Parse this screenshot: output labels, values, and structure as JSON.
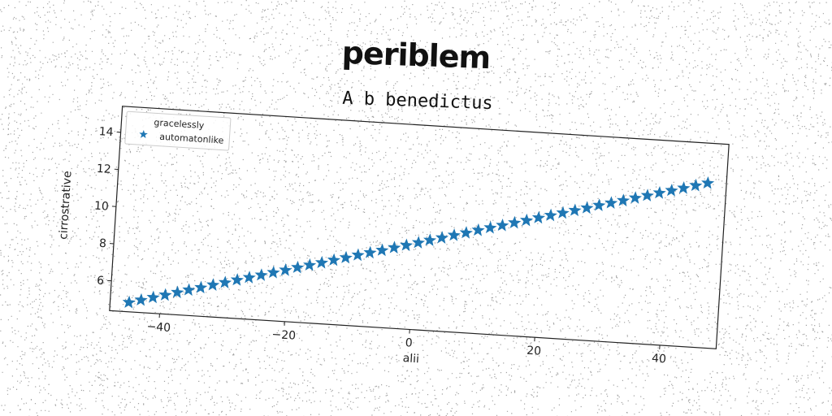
{
  "title": "periblem",
  "chart_data": {
    "type": "scatter",
    "subtitle": "A b benedictus",
    "xlabel": "alii",
    "ylabel": "cirrostrative",
    "xlim": [
      -48,
      49
    ],
    "ylim": [
      4.4,
      15.4
    ],
    "xticks": [
      -40,
      -20,
      0,
      20,
      40
    ],
    "xtick_labels": [
      "−40",
      "−20",
      "0",
      "20",
      "40"
    ],
    "yticks": [
      6,
      8,
      10,
      12,
      14
    ],
    "ytick_labels": [
      "6",
      "8",
      "10",
      "12",
      "14"
    ],
    "grid": false,
    "legend_position": "upper-left",
    "series": [
      {
        "name": "gracelessly",
        "marker": "none",
        "x": [],
        "y": []
      },
      {
        "name": "automatonlike",
        "marker": "star",
        "color": "#1f77b4",
        "x": [
          -45.0,
          -43.1,
          -41.2,
          -39.3,
          -37.4,
          -35.6,
          -33.7,
          -31.8,
          -29.9,
          -28.0,
          -26.1,
          -24.2,
          -22.3,
          -20.4,
          -18.5,
          -16.6,
          -14.7,
          -12.8,
          -10.9,
          -9.0,
          -7.1,
          -5.2,
          -3.3,
          -1.4,
          0.5,
          2.3,
          4.2,
          6.1,
          8.0,
          9.9,
          11.8,
          13.7,
          15.6,
          17.5,
          19.4,
          21.3,
          23.2,
          25.1,
          27.0,
          28.9,
          30.8,
          32.7,
          34.6,
          36.5,
          38.4,
          40.3,
          42.2,
          44.1,
          46.0
        ],
        "y": [
          4.9,
          5.07,
          5.25,
          5.42,
          5.6,
          5.77,
          5.94,
          6.12,
          6.29,
          6.47,
          6.64,
          6.81,
          6.99,
          7.16,
          7.34,
          7.51,
          7.68,
          7.86,
          8.03,
          8.21,
          8.38,
          8.55,
          8.73,
          8.9,
          9.08,
          9.25,
          9.42,
          9.6,
          9.77,
          9.95,
          10.12,
          10.29,
          10.47,
          10.64,
          10.82,
          10.99,
          11.16,
          11.34,
          11.51,
          11.69,
          11.86,
          12.03,
          12.21,
          12.38,
          12.56,
          12.73,
          12.9,
          13.08,
          13.25
        ]
      }
    ]
  }
}
